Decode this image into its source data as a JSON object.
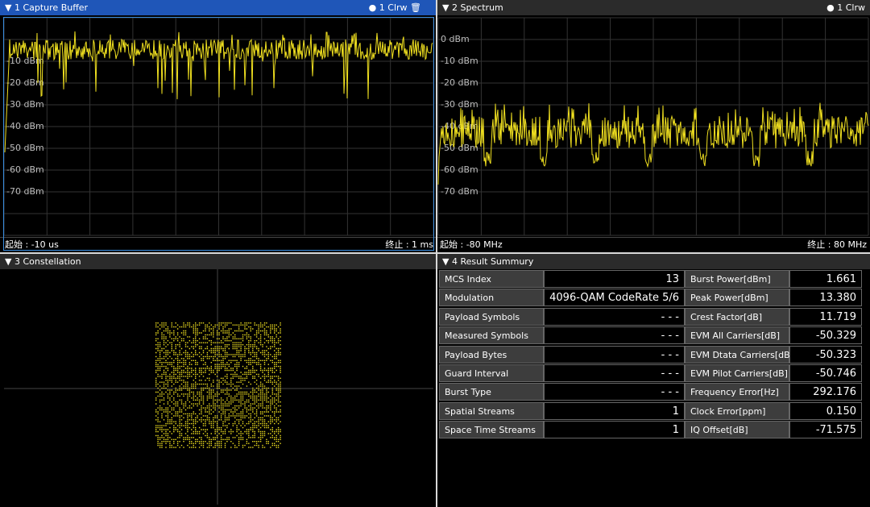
{
  "panels": [
    {
      "title": "1 Capture Buffer",
      "trace": "1 Clrw",
      "y_labels": [
        "-10 dBm",
        "-20 dBm",
        "-30 dBm",
        "-40 dBm",
        "-50 dBm",
        "-60 dBm",
        "-70 dBm"
      ],
      "start": "起始 : -10 us",
      "stop": "终止 : 1 ms"
    },
    {
      "title": "2 Spectrum",
      "trace": "1 Clrw",
      "y_labels": [
        "0 dBm",
        "-10 dBm",
        "-20 dBm",
        "-30 dBm",
        "-40 dBm",
        "-50 dBm",
        "-60 dBm",
        "-70 dBm"
      ],
      "start": "起始 : -80 MHz",
      "stop": "终止 : 80 MHz"
    },
    {
      "title": "3 Constellation"
    },
    {
      "title": "4 Result Summury"
    }
  ],
  "table": {
    "rows": [
      [
        "MCS Index",
        "13",
        "Burst Power[dBm]",
        "1.661"
      ],
      [
        "Modulation",
        "4096-QAM CodeRate 5/6",
        "Peak Power[dBm]",
        "13.380"
      ],
      [
        "Payload Symbols",
        "- - -",
        "Crest Factor[dB]",
        "11.719"
      ],
      [
        "Measured Symbols",
        "- - -",
        "EVM All Carriers[dB]",
        "-50.329"
      ],
      [
        "Payload Bytes",
        "- - -",
        "EVM Dtata Carriers[dB]",
        "-50.323"
      ],
      [
        "Guard Interval",
        "- - -",
        "EVM Pilot Carriers[dB]",
        "-50.746"
      ],
      [
        "Burst Type",
        "- - -",
        "Frequency Error[Hz]",
        "292.176"
      ],
      [
        "Spatial Streams",
        "1",
        "Clock Error[ppm]",
        "0.150"
      ],
      [
        "Space Time Streams",
        "1",
        "IQ Offset[dB]",
        "-71.575"
      ]
    ]
  }
}
